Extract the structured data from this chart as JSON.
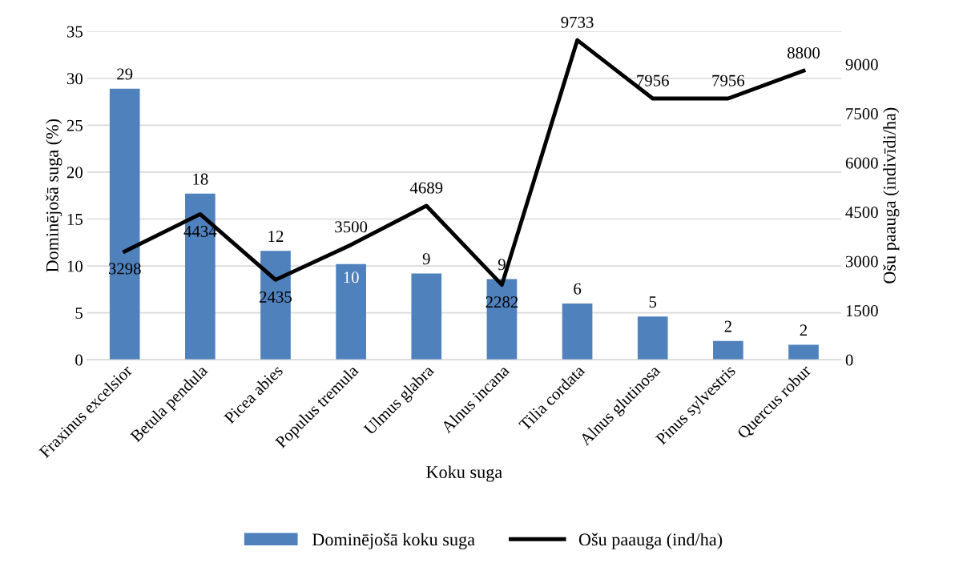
{
  "chart_data": {
    "type": "bar",
    "xlabel": "Koku suga",
    "ylabel": "Dominējošā suga (%)",
    "y2label": "Ošu paauga (indivīdi/ha)",
    "categories": [
      "Fraxinus excelsior",
      "Betula pendula",
      "Picea abies",
      "Populus tremula",
      "Ulmus glabra",
      "Alnus incana",
      "Tilia cordata",
      "Alnus glutinosa",
      "Pinus sylvestris",
      "Quercus robur"
    ],
    "series": [
      {
        "name": "Dominējošā koku suga",
        "type": "bar",
        "color": "#4f81bd",
        "values": [
          28.9,
          17.7,
          11.6,
          10.2,
          9.2,
          8.6,
          6.0,
          4.6,
          2.0,
          1.6
        ],
        "value_labels": [
          "29",
          "18",
          "12",
          "10",
          "9",
          "9",
          "6",
          "5",
          "2",
          "2"
        ]
      },
      {
        "name": "Ošu paauga (ind/ha)",
        "type": "line",
        "axis": "y2",
        "color": "#000000",
        "values": [
          3298,
          4434,
          2435,
          3500,
          4689,
          2282,
          9733,
          7956,
          7956,
          8800
        ],
        "data_labels": true
      }
    ],
    "ylim": [
      0,
      35
    ],
    "yticks": [
      0,
      5,
      10,
      15,
      20,
      25,
      30,
      35
    ],
    "y2lim": [
      0,
      10000
    ],
    "y2ticks": [
      0,
      1500,
      3000,
      4500,
      6000,
      7500,
      9000
    ],
    "grid": "y",
    "legend": "bottom",
    "marker": "none",
    "line_style": "solid"
  }
}
